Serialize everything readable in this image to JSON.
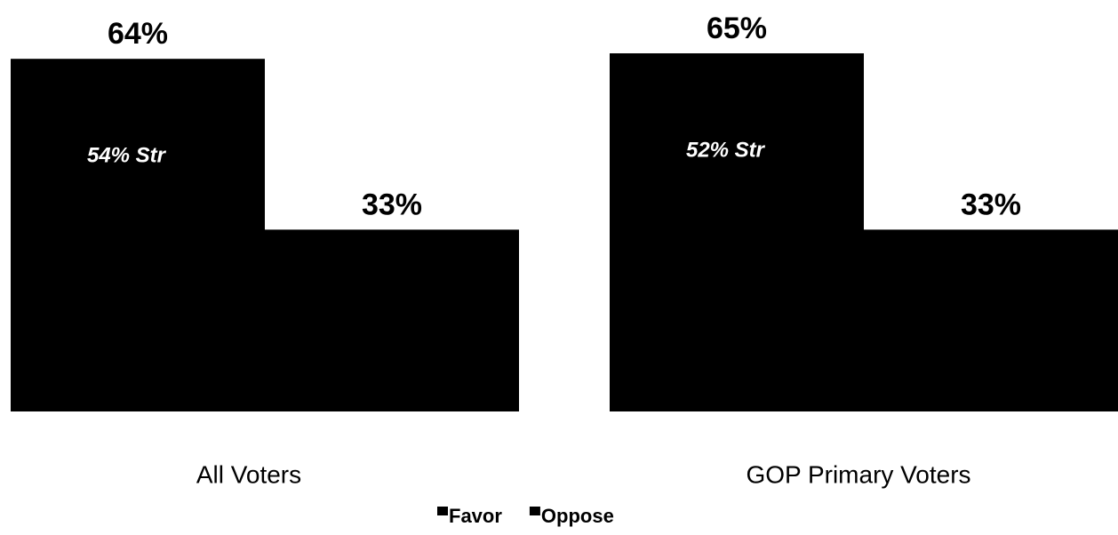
{
  "chart_data": {
    "type": "bar",
    "categories": [
      "All Voters",
      "GOP Primary Voters"
    ],
    "series": [
      {
        "name": "Favor",
        "color": "#000000",
        "values": [
          64,
          65
        ],
        "value_labels": [
          "64%",
          "65%"
        ]
      },
      {
        "name": "Oppose",
        "color": "#000000",
        "values": [
          33,
          33
        ],
        "value_labels": [
          "33%",
          "33%"
        ]
      }
    ],
    "annotations": [
      "54% Str",
      "52% Str"
    ]
  }
}
